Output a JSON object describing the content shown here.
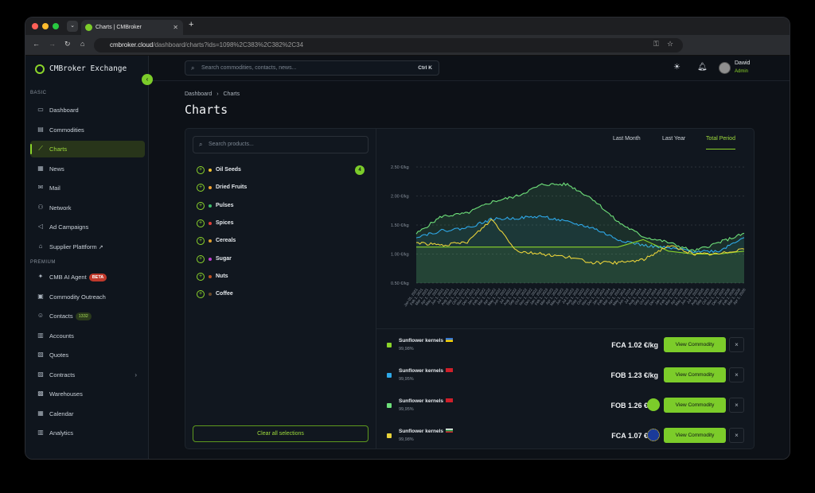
{
  "browser": {
    "tab_title": "Charts | CMBroker",
    "new_tab": "+",
    "url_host": "cmbroker.cloud",
    "url_path": "/dashboard/charts?ids=1098%2C383%2C382%2C34"
  },
  "sidebar": {
    "brand": "CMBroker Exchange",
    "section_basic": "BASIC",
    "section_premium": "PREMIUM",
    "items": [
      {
        "label": "Dashboard",
        "icon": "monitor-icon"
      },
      {
        "label": "Commodities",
        "icon": "box-icon"
      },
      {
        "label": "Charts",
        "icon": "chart-line-icon"
      },
      {
        "label": "News",
        "icon": "newspaper-icon"
      },
      {
        "label": "Mail",
        "icon": "mail-icon"
      },
      {
        "label": "Network",
        "icon": "network-icon"
      },
      {
        "label": "Ad Campaigns",
        "icon": "megaphone-icon"
      },
      {
        "label": "Supplier Plattform",
        "icon": "store-icon"
      }
    ],
    "premium_items": [
      {
        "label": "CMB AI Agent",
        "badge": "BETA"
      },
      {
        "label": "Commodity Outreach"
      },
      {
        "label": "Contacts",
        "badge": "1332"
      },
      {
        "label": "Accounts"
      },
      {
        "label": "Quotes"
      },
      {
        "label": "Contracts"
      },
      {
        "label": "Warehouses"
      },
      {
        "label": "Calendar"
      },
      {
        "label": "Analytics"
      }
    ]
  },
  "topbar": {
    "search_placeholder": "Search commodities, contacts, news...",
    "shortcut": "Ctrl K",
    "user_name": "Dawid",
    "user_role": "Admin"
  },
  "page": {
    "breadcrumb_root": "Dashboard",
    "breadcrumb_sep": "›",
    "breadcrumb_current": "Charts",
    "title": "Charts"
  },
  "products": {
    "search_placeholder": "Search products...",
    "items": [
      {
        "label": "Oil Seeds",
        "color": "#f2c230",
        "count": "4"
      },
      {
        "label": "Dried Fruits",
        "color": "#f2a230"
      },
      {
        "label": "Pulses",
        "color": "#3fbf6a"
      },
      {
        "label": "Spices",
        "color": "#e0403a"
      },
      {
        "label": "Cereals",
        "color": "#e0a030"
      },
      {
        "label": "Sugar",
        "color": "#c040d0"
      },
      {
        "label": "Nuts",
        "color": "#c05020"
      },
      {
        "label": "Coffee",
        "color": "#6b4a2a"
      }
    ],
    "clear_label": "Clear all selections"
  },
  "periods": {
    "last_month": "Last Month",
    "last_year": "Last Year",
    "total": "Total Period"
  },
  "chart_data": {
    "type": "line",
    "ylabel": "",
    "yticks": [
      "2.50 €/kg",
      "2.00 €/kg",
      "1.50 €/kg",
      "1.00 €/kg",
      "0.50 €/kg"
    ],
    "ylim": [
      0.5,
      2.5
    ],
    "x": [
      "Jan 2021",
      "Jun 2021",
      "Nov 2021",
      "Apr 2022",
      "Sep 2022",
      "Feb 2023",
      "Jul 2023",
      "Dec 2023",
      "May 2024",
      "Oct 2024",
      "Mar 2025",
      "Aug 2025",
      "Jan 2026",
      "Apr 2026"
    ],
    "xticks": [
      "Jan 01, 2021",
      "Feb 1, 2021",
      "Mar 1, 2021",
      "Apr 1, 2021",
      "May 1, 2021",
      "Jun 1, 2021",
      "Jul 1, 2021",
      "Aug 1, 2021",
      "Sep 1, 2021",
      "Oct 1, 2021",
      "Nov 1, 2021",
      "Dec 1, 2021",
      "Jan 1, 2022",
      "Feb 1, 2022",
      "Mar 1, 2022",
      "Apr 1, 2022",
      "May 1, 2022",
      "Jun 1, 2022",
      "Jul 1, 2022",
      "Aug 1, 2022",
      "Sep 1, 2022",
      "Oct 1, 2022",
      "Nov 1, 2022",
      "Dec 1, 2022",
      "Jan 1, 2023",
      "Feb 1, 2023",
      "Mar 1, 2023",
      "Apr 1, 2023",
      "May 1, 2023",
      "Jun 1, 2023",
      "Jul 1, 2023",
      "Aug 1, 2023",
      "Sep 1, 2023",
      "Oct 1, 2023",
      "Nov 1, 2023",
      "Dec 1, 2023",
      "Jan 1, 2024",
      "Feb 1, 2024",
      "Mar 1, 2024",
      "Apr 1, 2024",
      "May 1, 2024",
      "Jun 1, 2024",
      "Jul 1, 2024",
      "Aug 1, 2024",
      "Sep 1, 2024",
      "Oct 1, 2024",
      "Nov 1, 2024",
      "Dec 1, 2024",
      "Jan 1, 2025",
      "Feb 1, 2025",
      "Mar 1, 2025",
      "Apr 1, 2025",
      "May 1, 2025",
      "Jun 1, 2025",
      "Jul 1, 2025",
      "Aug 1, 2025",
      "Sep 1, 2025",
      "Oct 1, 2025",
      "Nov 1, 2025",
      "Dec 1, 2025",
      "Jan 1, 2026",
      "Feb 1, 2026",
      "Mar 1, 2026",
      "Apr 1, 2026"
    ],
    "series": [
      {
        "color": "#6ee07a",
        "values": [
          1.35,
          1.65,
          1.7,
          1.9,
          2.0,
          2.2,
          2.2,
          1.95,
          1.55,
          1.3,
          1.2,
          1.05,
          1.2,
          1.35
        ]
      },
      {
        "color": "#2ea8e8",
        "values": [
          1.3,
          1.4,
          1.45,
          1.6,
          1.62,
          1.65,
          1.55,
          1.45,
          1.25,
          1.15,
          1.1,
          1.05,
          1.05,
          1.3
        ]
      },
      {
        "color": "#8bd42a",
        "values": [
          1.12,
          1.12,
          1.12,
          1.12,
          1.12,
          1.12,
          1.12,
          1.12,
          1.12,
          1.25,
          1.05,
          1.0,
          1.0,
          1.05
        ]
      },
      {
        "color": "#e8d23a",
        "values": [
          1.2,
          1.15,
          1.2,
          1.6,
          1.05,
          1.0,
          0.95,
          0.85,
          0.85,
          0.9,
          1.15,
          1.0,
          1.0,
          1.1
        ]
      }
    ]
  },
  "commodities": [
    {
      "name": "Sunflower kernels",
      "purity": "99,98%",
      "price": "FCA 1.02 €/kg",
      "color": "#8bd42a",
      "flag": "ua",
      "cert": ""
    },
    {
      "name": "Sunflower kernels",
      "purity": "99,95%",
      "price": "FOB 1.23 €/kg",
      "color": "#2ea8e8",
      "flag": "tr",
      "cert": ""
    },
    {
      "name": "Sunflower kernels",
      "purity": "99,95%",
      "price": "FOB 1.26 €/kg",
      "color": "#6ee07a",
      "flag": "tr",
      "cert": "organic"
    },
    {
      "name": "Sunflower kernels",
      "purity": "99,98%",
      "price": "FCA 1.07 €/kg",
      "color": "#e8d23a",
      "flag": "bg",
      "cert": "eu"
    }
  ],
  "view_label": "View Commodity",
  "remove_label": "×"
}
